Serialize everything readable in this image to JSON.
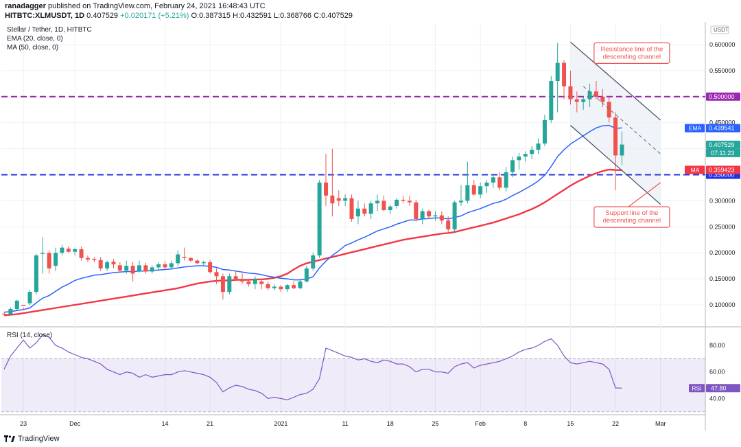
{
  "header": {
    "author": "ranadagger",
    "published_text": "published on TradingView.com, February 24, 2021 16:48:43 UTC",
    "symbol": "HITBTC:XLMUSDT, 1D",
    "last": "0.407529",
    "change": "+0.020171 (+5.21%)",
    "ohlc": "O:0.387315 H:0.432591 L:0.368766 C:0.407529"
  },
  "footer": {
    "brand": "TradingView"
  },
  "colors": {
    "up": "#26a69a",
    "down": "#ef5350",
    "ema": "#2962ff",
    "ma": "#f23645",
    "purple_line": "#9c27b0",
    "blue_line": "#1e33e6",
    "rsi": "#7e57c2"
  },
  "chart_data": [
    {
      "type": "candlestick",
      "title": "Stellar / Tether, 1D, HITBTC",
      "legend": [
        "EMA (20, close, 0)",
        "MA (50, close, 0)"
      ],
      "currency_label": "USDT",
      "ylim": [
        0.05,
        0.63
      ],
      "yticks": [
        "0.600000",
        "0.550000",
        "0.500000",
        "0.450000",
        "0.400000",
        "0.350000",
        "0.300000",
        "0.250000",
        "0.200000",
        "0.150000",
        "0.100000"
      ],
      "xticks": [
        {
          "label": "23",
          "day": 3
        },
        {
          "label": "Dec",
          "day": 11
        },
        {
          "label": "14",
          "day": 25
        },
        {
          "label": "21",
          "day": 32
        },
        {
          "label": "2021",
          "day": 43
        },
        {
          "label": "11",
          "day": 53
        },
        {
          "label": "18",
          "day": 60
        },
        {
          "label": "25",
          "day": 67
        },
        {
          "label": "Feb",
          "day": 74
        },
        {
          "label": "8",
          "day": 81
        },
        {
          "label": "15",
          "day": 88
        },
        {
          "label": "22",
          "day": 95
        },
        {
          "label": "Mar",
          "day": 102
        }
      ],
      "x_date_labels_note": "day index 0 = 2020-11-20",
      "candles": [
        [
          0.083,
          0.086,
          0.08,
          0.082
        ],
        [
          0.082,
          0.095,
          0.081,
          0.092
        ],
        [
          0.092,
          0.11,
          0.09,
          0.108
        ],
        [
          0.1,
          0.095,
          0.09,
          0.098
        ],
        [
          0.103,
          0.128,
          0.099,
          0.125
        ],
        [
          0.125,
          0.198,
          0.12,
          0.195
        ],
        [
          0.198,
          0.23,
          0.16,
          0.2
        ],
        [
          0.2,
          0.205,
          0.16,
          0.17
        ],
        [
          0.175,
          0.21,
          0.165,
          0.2
        ],
        [
          0.2,
          0.215,
          0.195,
          0.21
        ],
        [
          0.208,
          0.212,
          0.2,
          0.202
        ],
        [
          0.202,
          0.21,
          0.195,
          0.207
        ],
        [
          0.207,
          0.212,
          0.185,
          0.19
        ],
        [
          0.19,
          0.195,
          0.182,
          0.187
        ],
        [
          0.188,
          0.192,
          0.182,
          0.186
        ],
        [
          0.186,
          0.192,
          0.165,
          0.17
        ],
        [
          0.17,
          0.185,
          0.165,
          0.182
        ],
        [
          0.183,
          0.188,
          0.17,
          0.178
        ],
        [
          0.176,
          0.182,
          0.162,
          0.166
        ],
        [
          0.166,
          0.185,
          0.16,
          0.175
        ],
        [
          0.175,
          0.182,
          0.145,
          0.16
        ],
        [
          0.165,
          0.185,
          0.162,
          0.176
        ],
        [
          0.176,
          0.181,
          0.16,
          0.164
        ],
        [
          0.164,
          0.176,
          0.16,
          0.172
        ],
        [
          0.172,
          0.182,
          0.165,
          0.178
        ],
        [
          0.178,
          0.185,
          0.168,
          0.172
        ],
        [
          0.172,
          0.185,
          0.168,
          0.18
        ],
        [
          0.18,
          0.205,
          0.175,
          0.197
        ],
        [
          0.192,
          0.21,
          0.185,
          0.19
        ],
        [
          0.19,
          0.192,
          0.182,
          0.185
        ],
        [
          0.185,
          0.188,
          0.178,
          0.18
        ],
        [
          0.18,
          0.185,
          0.175,
          0.182
        ],
        [
          0.182,
          0.186,
          0.16,
          0.163
        ],
        [
          0.163,
          0.17,
          0.14,
          0.155
        ],
        [
          0.155,
          0.16,
          0.11,
          0.125
        ],
        [
          0.125,
          0.16,
          0.12,
          0.155
        ],
        [
          0.155,
          0.165,
          0.148,
          0.15
        ],
        [
          0.15,
          0.16,
          0.14,
          0.145
        ],
        [
          0.145,
          0.15,
          0.135,
          0.14
        ],
        [
          0.14,
          0.155,
          0.13,
          0.15
        ],
        [
          0.145,
          0.15,
          0.13,
          0.14
        ],
        [
          0.14,
          0.145,
          0.128,
          0.132
        ],
        [
          0.132,
          0.14,
          0.128,
          0.135
        ],
        [
          0.135,
          0.138,
          0.125,
          0.13
        ],
        [
          0.13,
          0.14,
          0.125,
          0.138
        ],
        [
          0.138,
          0.145,
          0.13,
          0.132
        ],
        [
          0.132,
          0.15,
          0.13,
          0.145
        ],
        [
          0.145,
          0.175,
          0.143,
          0.17
        ],
        [
          0.17,
          0.2,
          0.165,
          0.195
        ],
        [
          0.195,
          0.34,
          0.19,
          0.335
        ],
        [
          0.335,
          0.39,
          0.29,
          0.31
        ],
        [
          0.31,
          0.4,
          0.27,
          0.295
        ],
        [
          0.305,
          0.32,
          0.29,
          0.3
        ],
        [
          0.3,
          0.312,
          0.29,
          0.305
        ],
        [
          0.305,
          0.312,
          0.26,
          0.265
        ],
        [
          0.27,
          0.3,
          0.255,
          0.285
        ],
        [
          0.285,
          0.295,
          0.27,
          0.275
        ],
        [
          0.275,
          0.3,
          0.265,
          0.295
        ],
        [
          0.295,
          0.312,
          0.28,
          0.3
        ],
        [
          0.3,
          0.31,
          0.28,
          0.282
        ],
        [
          0.282,
          0.292,
          0.275,
          0.289
        ],
        [
          0.29,
          0.305,
          0.285,
          0.302
        ],
        [
          0.302,
          0.31,
          0.295,
          0.3
        ],
        [
          0.3,
          0.31,
          0.29,
          0.297
        ],
        [
          0.297,
          0.302,
          0.26,
          0.265
        ],
        [
          0.265,
          0.285,
          0.255,
          0.28
        ],
        [
          0.28,
          0.283,
          0.265,
          0.27
        ],
        [
          0.27,
          0.28,
          0.262,
          0.272
        ],
        [
          0.272,
          0.28,
          0.255,
          0.262
        ],
        [
          0.262,
          0.27,
          0.24,
          0.245
        ],
        [
          0.245,
          0.3,
          0.24,
          0.297
        ],
        [
          0.297,
          0.33,
          0.29,
          0.3
        ],
        [
          0.3,
          0.375,
          0.295,
          0.33
        ],
        [
          0.33,
          0.34,
          0.31,
          0.312
        ],
        [
          0.312,
          0.335,
          0.305,
          0.328
        ],
        [
          0.328,
          0.34,
          0.315,
          0.335
        ],
        [
          0.335,
          0.35,
          0.325,
          0.345
        ],
        [
          0.345,
          0.355,
          0.32,
          0.325
        ],
        [
          0.325,
          0.365,
          0.318,
          0.355
        ],
        [
          0.355,
          0.385,
          0.345,
          0.378
        ],
        [
          0.378,
          0.392,
          0.36,
          0.385
        ],
        [
          0.385,
          0.395,
          0.375,
          0.39
        ],
        [
          0.39,
          0.405,
          0.38,
          0.398
        ],
        [
          0.398,
          0.42,
          0.39,
          0.41
        ],
        [
          0.41,
          0.465,
          0.405,
          0.455
        ],
        [
          0.455,
          0.54,
          0.45,
          0.53
        ],
        [
          0.53,
          0.603,
          0.47,
          0.565
        ],
        [
          0.565,
          0.57,
          0.495,
          0.52
        ],
        [
          0.52,
          0.55,
          0.485,
          0.495
        ],
        [
          0.495,
          0.51,
          0.47,
          0.49
        ],
        [
          0.49,
          0.5,
          0.475,
          0.495
        ],
        [
          0.495,
          0.525,
          0.48,
          0.51
        ],
        [
          0.51,
          0.53,
          0.495,
          0.5
        ],
        [
          0.5,
          0.515,
          0.48,
          0.49
        ],
        [
          0.49,
          0.5,
          0.45,
          0.46
        ],
        [
          0.46,
          0.47,
          0.32,
          0.387
        ],
        [
          0.387,
          0.433,
          0.369,
          0.408
        ]
      ],
      "ema": [
        0.086,
        0.087,
        0.089,
        0.091,
        0.094,
        0.104,
        0.113,
        0.118,
        0.126,
        0.134,
        0.14,
        0.147,
        0.151,
        0.154,
        0.157,
        0.158,
        0.16,
        0.162,
        0.163,
        0.164,
        0.164,
        0.165,
        0.165,
        0.166,
        0.167,
        0.168,
        0.169,
        0.171,
        0.173,
        0.174,
        0.175,
        0.175,
        0.174,
        0.172,
        0.168,
        0.167,
        0.165,
        0.163,
        0.161,
        0.16,
        0.158,
        0.155,
        0.153,
        0.151,
        0.15,
        0.148,
        0.148,
        0.15,
        0.154,
        0.171,
        0.184,
        0.195,
        0.204,
        0.214,
        0.219,
        0.225,
        0.23,
        0.236,
        0.242,
        0.246,
        0.25,
        0.255,
        0.259,
        0.263,
        0.263,
        0.265,
        0.266,
        0.267,
        0.267,
        0.265,
        0.268,
        0.271,
        0.277,
        0.281,
        0.285,
        0.29,
        0.295,
        0.298,
        0.303,
        0.31,
        0.316,
        0.323,
        0.33,
        0.338,
        0.349,
        0.366,
        0.385,
        0.398,
        0.409,
        0.417,
        0.425,
        0.433,
        0.44,
        0.444,
        0.445,
        0.439,
        0.44
      ],
      "ma": [
        0.08,
        0.081,
        0.082,
        0.084,
        0.086,
        0.088,
        0.09,
        0.092,
        0.094,
        0.096,
        0.098,
        0.1,
        0.102,
        0.104,
        0.106,
        0.108,
        0.11,
        0.112,
        0.114,
        0.116,
        0.118,
        0.12,
        0.122,
        0.124,
        0.126,
        0.128,
        0.13,
        0.132,
        0.135,
        0.138,
        0.141,
        0.143,
        0.145,
        0.146,
        0.147,
        0.147,
        0.148,
        0.148,
        0.148,
        0.149,
        0.149,
        0.15,
        0.152,
        0.155,
        0.16,
        0.168,
        0.175,
        0.18,
        0.183,
        0.186,
        0.189,
        0.192,
        0.195,
        0.198,
        0.201,
        0.204,
        0.207,
        0.21,
        0.213,
        0.216,
        0.219,
        0.222,
        0.225,
        0.227,
        0.229,
        0.231,
        0.233,
        0.235,
        0.237,
        0.238,
        0.24,
        0.243,
        0.246,
        0.249,
        0.252,
        0.255,
        0.258,
        0.262,
        0.266,
        0.27,
        0.274,
        0.279,
        0.284,
        0.29,
        0.297,
        0.305,
        0.313,
        0.321,
        0.329,
        0.336,
        0.342,
        0.348,
        0.353,
        0.357,
        0.36,
        0.359,
        0.359
      ],
      "horizontal_lines": [
        {
          "value": 0.5,
          "label": "0.500000",
          "style": "dashed-purple"
        },
        {
          "value": 0.35,
          "label": "0.350000",
          "style": "dashed-blue"
        }
      ],
      "price_tags": [
        {
          "name": "EMA",
          "value": 0.439541,
          "label": "0.439541"
        },
        {
          "name": "last",
          "value": 0.407529,
          "label": "0.407529",
          "countdown": "07:11:23"
        },
        {
          "name": "MA",
          "value": 0.359423,
          "label": "0.359423"
        }
      ],
      "channel": {
        "resistance": [
          [
            88,
            0.605
          ],
          [
            102,
            0.455
          ]
        ],
        "support": [
          [
            88,
            0.445
          ],
          [
            102,
            0.293
          ]
        ],
        "midline": [
          [
            90,
            0.52
          ],
          [
            102,
            0.39
          ]
        ]
      },
      "annotations": [
        {
          "text": [
            "Resistance line of the",
            "descending channel"
          ],
          "box_at": [
            97,
            0.585
          ],
          "arrow_to": [
            92,
            0.56
          ]
        },
        {
          "text": [
            "Support line of the",
            "descending channel"
          ],
          "box_at": [
            97,
            0.27
          ],
          "arrow_to": [
            102,
            0.335
          ]
        }
      ]
    },
    {
      "type": "line",
      "title": "RSI (14, close)",
      "ylim": [
        28,
        92
      ],
      "yticks": [
        "80.00",
        "60.00",
        "40.00"
      ],
      "band": [
        30,
        70
      ],
      "last_label": "RSI",
      "last_value": "47.80",
      "values": [
        62,
        72,
        78,
        84,
        78,
        82,
        88,
        86,
        80,
        78,
        75,
        73,
        71,
        70,
        68,
        66,
        62,
        60,
        58,
        60,
        59,
        56,
        58,
        56,
        57,
        58,
        58,
        60,
        61,
        60,
        59,
        58,
        56,
        52,
        45,
        48,
        50,
        49,
        47,
        46,
        44,
        40,
        41,
        40,
        39,
        41,
        43,
        44,
        47,
        55,
        78,
        76,
        74,
        72,
        71,
        69,
        70,
        68,
        67,
        69,
        68,
        66,
        66,
        64,
        60,
        62,
        62,
        60,
        60,
        59,
        64,
        66,
        67,
        63,
        65,
        66,
        67,
        68,
        70,
        72,
        75,
        77,
        78,
        80,
        83,
        85,
        80,
        72,
        67,
        66,
        67,
        68,
        67,
        66,
        62,
        48,
        47.8
      ]
    }
  ]
}
